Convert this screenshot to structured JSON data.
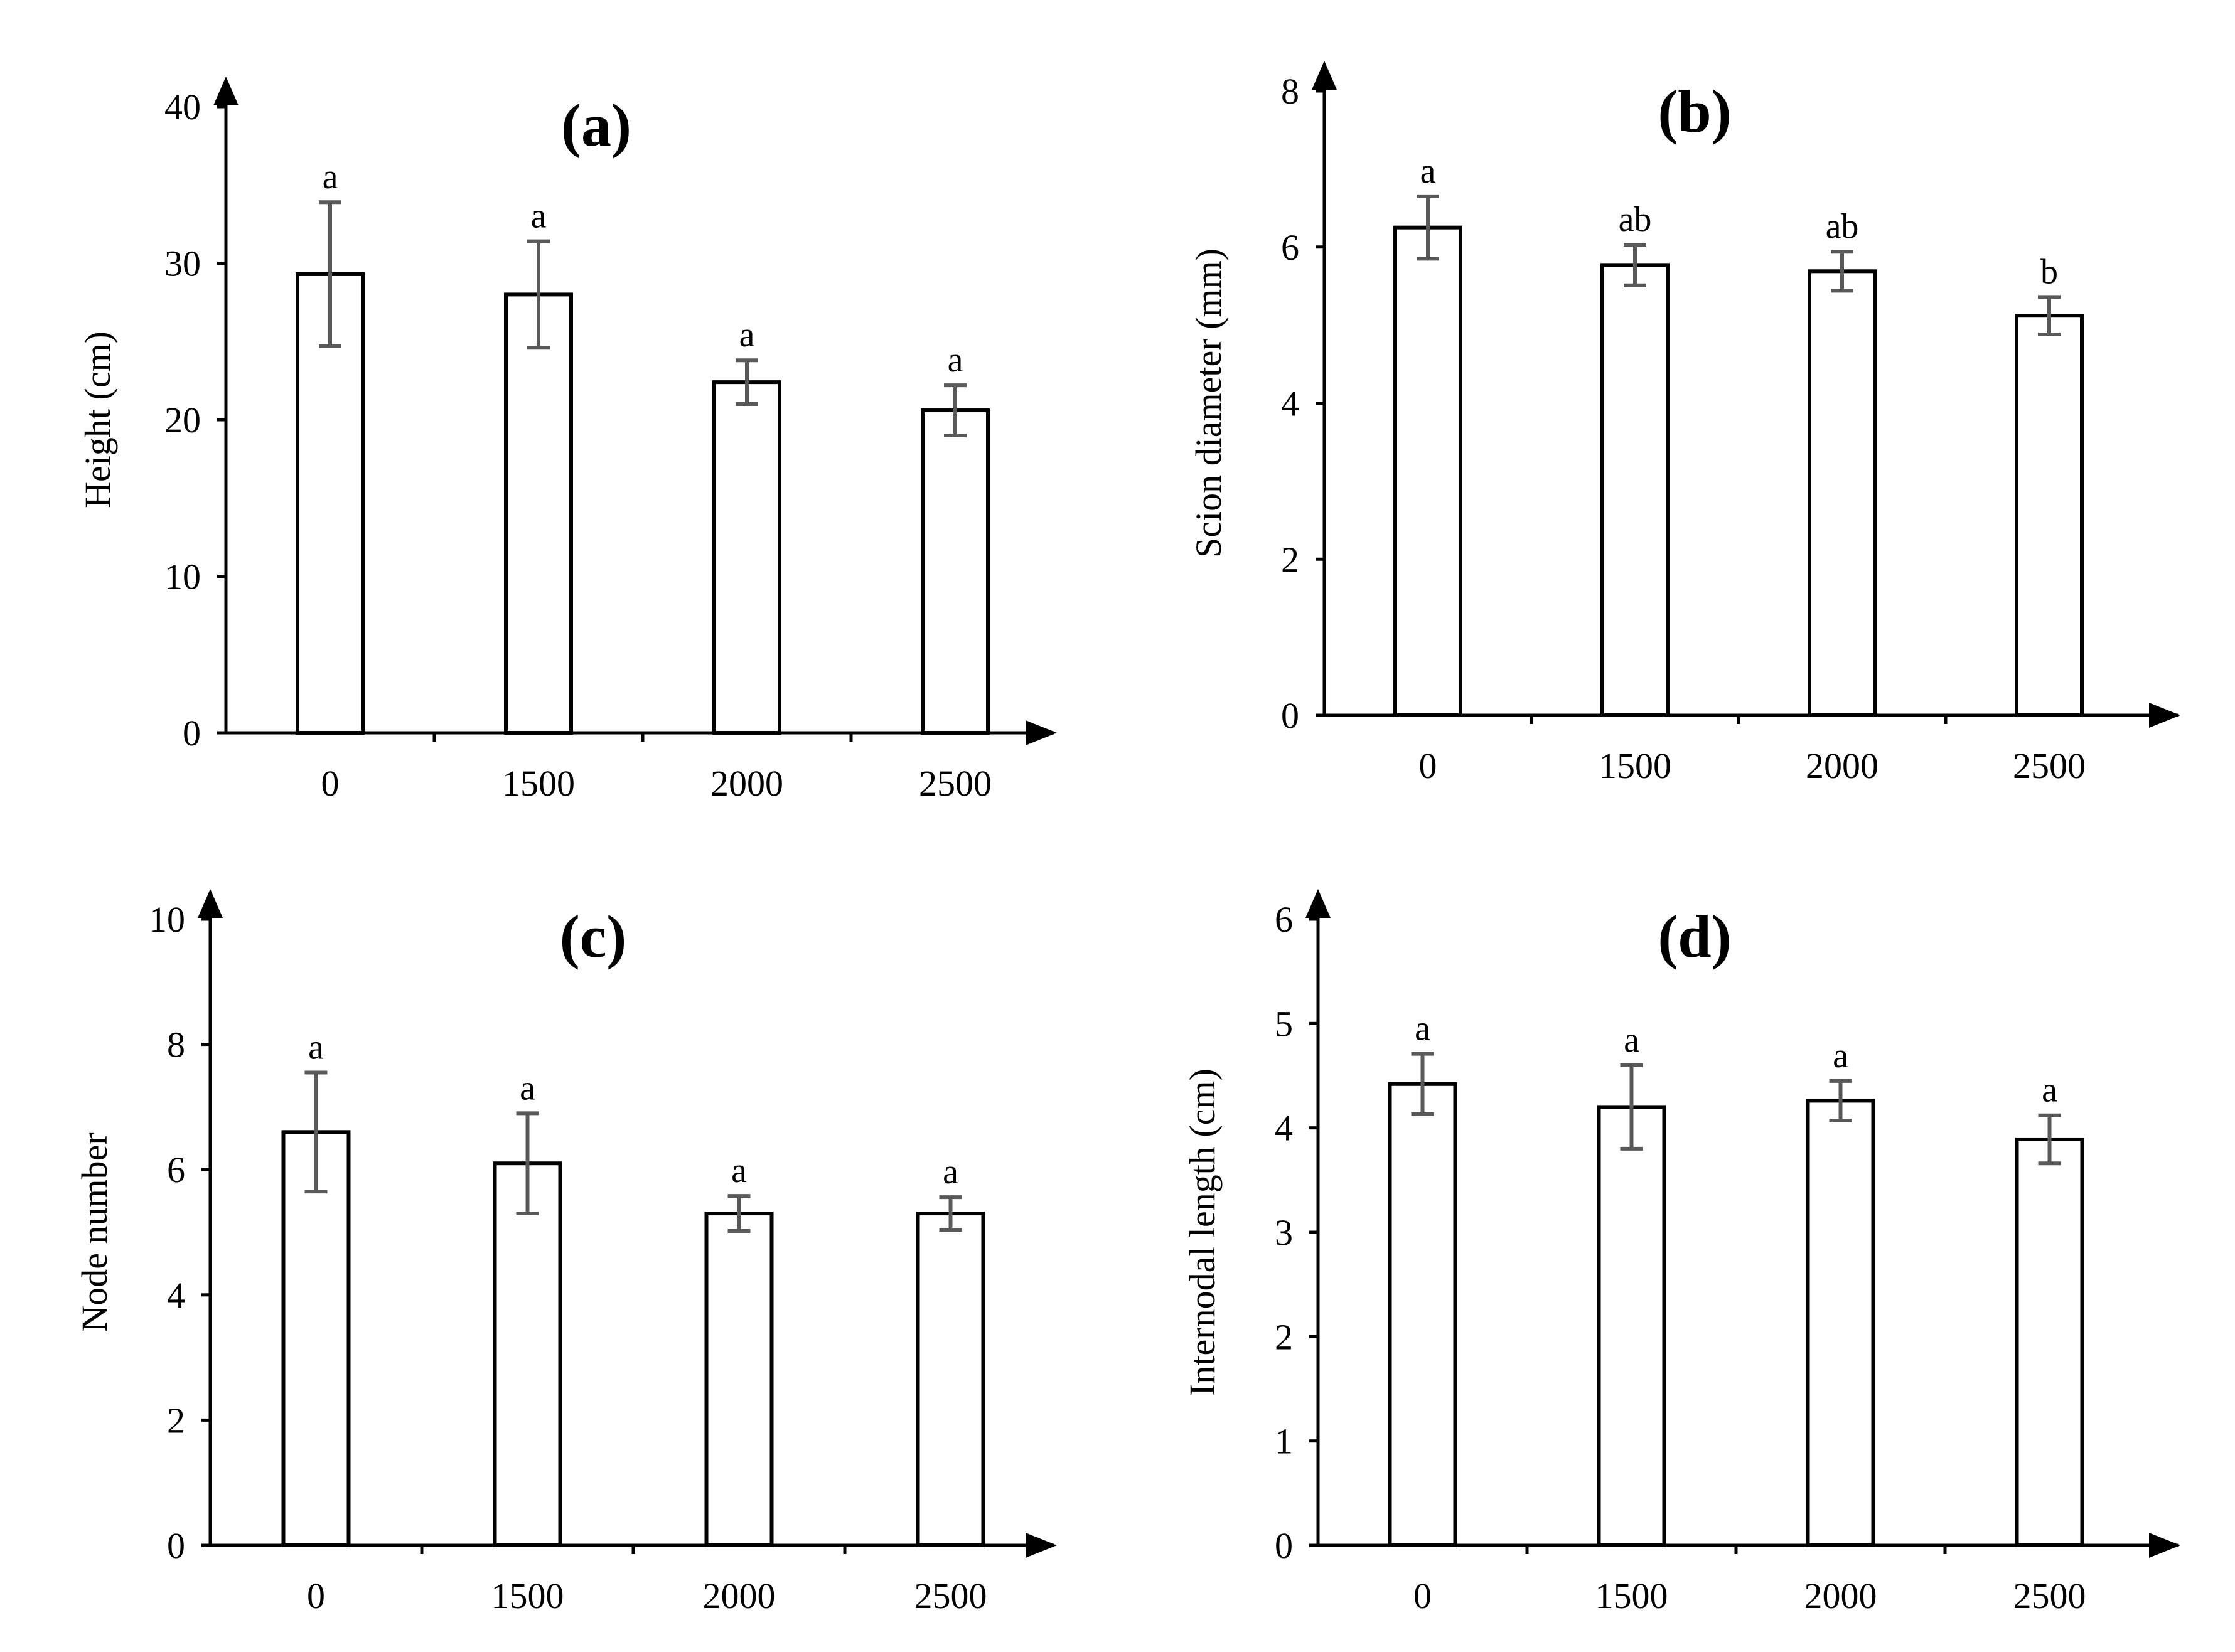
{
  "chart_data": [
    {
      "type": "bar",
      "panel": "(a)",
      "title": "(a)",
      "ylabel": "Height (cm)",
      "xlabel": "",
      "ylim": [
        0,
        40
      ],
      "yticks": [
        0,
        10,
        20,
        30,
        40
      ],
      "categories": [
        "0",
        "1500",
        "2000",
        "2500"
      ],
      "values": [
        29.3,
        28.0,
        22.4,
        20.6
      ],
      "errors": [
        4.6,
        3.4,
        1.4,
        1.6
      ],
      "letters": [
        "a",
        "a",
        "a",
        "a"
      ],
      "colors": {
        "bar_fill": "#ffffff",
        "bar_edge": "#000000",
        "error_bar": "#595959"
      }
    },
    {
      "type": "bar",
      "panel": "(b)",
      "title": "(b)",
      "ylabel": "Scion diameter (mm)",
      "xlabel": "",
      "ylim": [
        0,
        8
      ],
      "yticks": [
        0,
        2,
        4,
        6,
        8
      ],
      "categories": [
        "0",
        "1500",
        "2000",
        "2500"
      ],
      "values": [
        6.25,
        5.77,
        5.69,
        5.12
      ],
      "errors": [
        0.4,
        0.26,
        0.25,
        0.24
      ],
      "letters": [
        "a",
        "ab",
        "ab",
        "b"
      ],
      "colors": {
        "bar_fill": "#ffffff",
        "bar_edge": "#000000",
        "error_bar": "#595959"
      }
    },
    {
      "type": "bar",
      "panel": "(c)",
      "title": "(c)",
      "ylabel": "Node number",
      "xlabel": "",
      "ylim": [
        0,
        10
      ],
      "yticks": [
        0,
        2,
        4,
        6,
        8,
        10
      ],
      "categories": [
        "0",
        "1500",
        "2000",
        "2500"
      ],
      "values": [
        6.6,
        6.1,
        5.3,
        5.3
      ],
      "errors": [
        0.95,
        0.8,
        0.28,
        0.26
      ],
      "letters": [
        "a",
        "a",
        "a",
        "a"
      ],
      "colors": {
        "bar_fill": "#ffffff",
        "bar_edge": "#000000",
        "error_bar": "#595959"
      }
    },
    {
      "type": "bar",
      "panel": "(d)",
      "title": "(d)",
      "ylabel": "Internodal length (cm)",
      "xlabel": "",
      "ylim": [
        0,
        6
      ],
      "yticks": [
        0,
        1,
        2,
        3,
        4,
        5,
        6
      ],
      "categories": [
        "0",
        "1500",
        "2000",
        "2500"
      ],
      "values": [
        4.42,
        4.2,
        4.26,
        3.89
      ],
      "errors": [
        0.29,
        0.4,
        0.19,
        0.23
      ],
      "letters": [
        "a",
        "a",
        "a",
        "a"
      ],
      "colors": {
        "bar_fill": "#ffffff",
        "bar_edge": "#000000",
        "error_bar": "#595959"
      }
    }
  ]
}
